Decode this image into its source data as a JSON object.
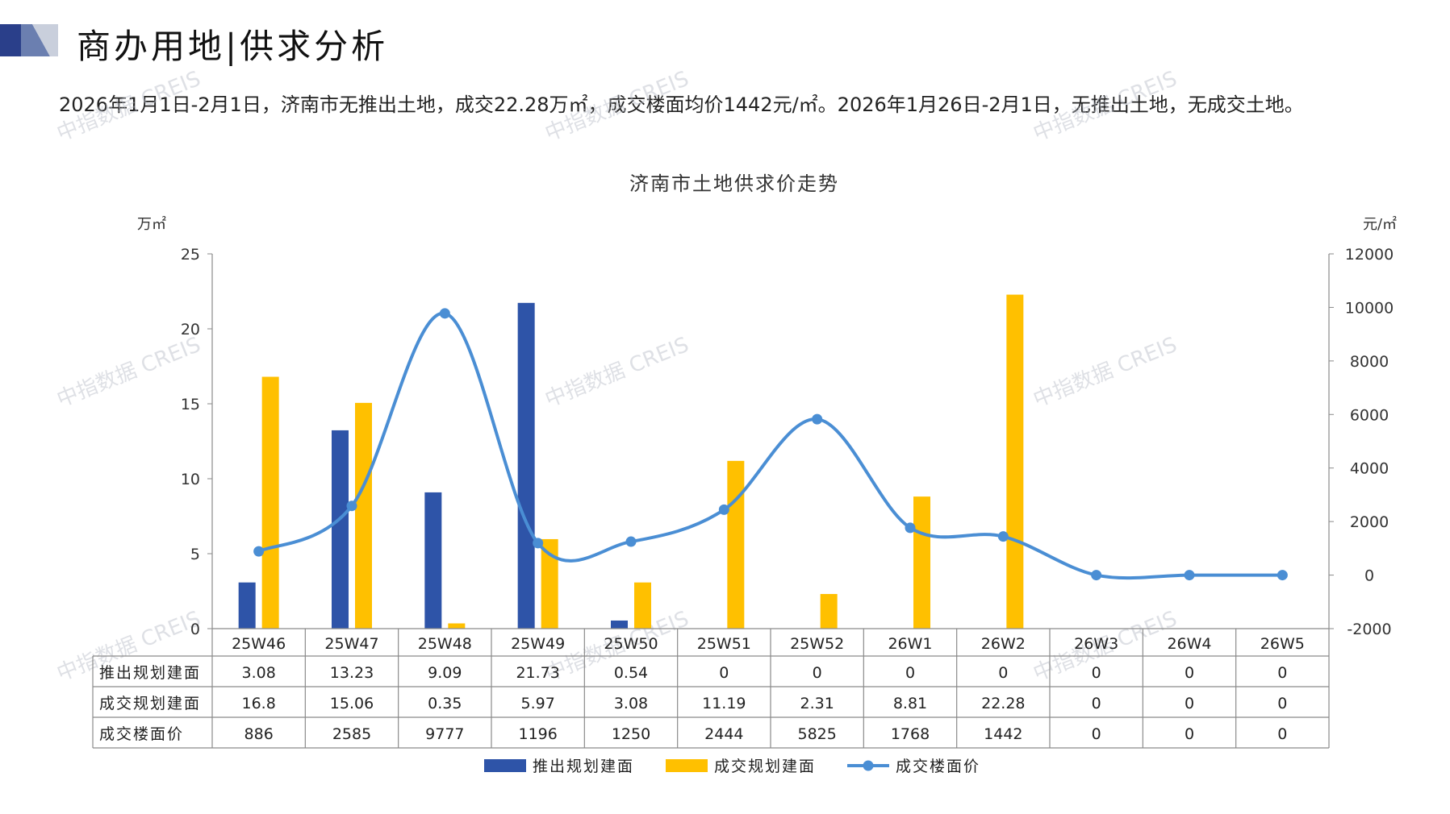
{
  "header": {
    "title": "商办用地|供求分析",
    "description": "2026年1月1日-2月1日，济南市无推出土地，成交22.28万㎡，成交楼面均价1442元/㎡。2026年1月26日-2月1日，无推出土地，无成交土地。"
  },
  "watermark": "中指数据 CREIS",
  "colors": {
    "supply": "#2e54a8",
    "deal": "#ffc000",
    "price": "#4a8ed4",
    "accent_dark": "#2a3f8a"
  },
  "chart_data": {
    "type": "bar",
    "title": "济南市土地供求价走势",
    "ylabel_left": "万㎡",
    "ylabel_right": "元/㎡",
    "ylim_left": [
      0,
      25
    ],
    "yticks_left": [
      "0",
      "5",
      "10",
      "15",
      "20",
      "25"
    ],
    "ylim_right": [
      -2000,
      12000
    ],
    "yticks_right": [
      "-2000",
      "0",
      "2000",
      "4000",
      "6000",
      "8000",
      "10000",
      "12000"
    ],
    "categories": [
      "25W46",
      "25W47",
      "25W48",
      "25W49",
      "25W50",
      "25W51",
      "25W52",
      "26W1",
      "26W2",
      "26W3",
      "26W4",
      "26W5"
    ],
    "series": [
      {
        "name": "推出规划建面",
        "type": "bar",
        "axis": "left",
        "values": [
          3.08,
          13.23,
          9.09,
          21.73,
          0.54,
          0,
          0,
          0,
          0,
          0,
          0,
          0
        ],
        "labels": [
          "3.08",
          "13.23",
          "9.09",
          "21.73",
          "0.54",
          "0",
          "0",
          "0",
          "0",
          "0",
          "0",
          "0"
        ]
      },
      {
        "name": "成交规划建面",
        "type": "bar",
        "axis": "left",
        "values": [
          16.8,
          15.06,
          0.35,
          5.97,
          3.08,
          11.19,
          2.31,
          8.81,
          22.28,
          0,
          0,
          0
        ],
        "labels": [
          "16.8",
          "15.06",
          "0.35",
          "5.97",
          "3.08",
          "11.19",
          "2.31",
          "8.81",
          "22.28",
          "0",
          "0",
          "0"
        ]
      },
      {
        "name": "成交楼面价",
        "type": "line",
        "axis": "right",
        "values": [
          886,
          2585,
          9777,
          1196,
          1250,
          2444,
          5825,
          1768,
          1442,
          0,
          0,
          0
        ],
        "labels": [
          "886",
          "2585",
          "9777",
          "1196",
          "1250",
          "2444",
          "5825",
          "1768",
          "1442",
          "0",
          "0",
          "0"
        ]
      }
    ]
  }
}
